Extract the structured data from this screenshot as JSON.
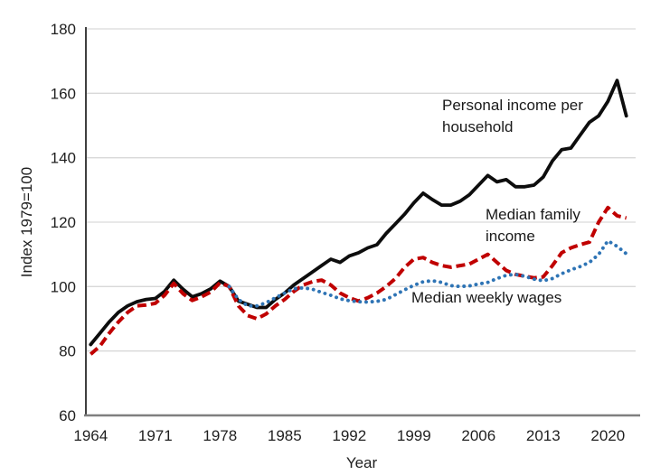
{
  "chart_data": {
    "type": "line",
    "title": "",
    "xlabel": "Year",
    "ylabel": "Index 1979=100",
    "x_ticks": [
      1964,
      1971,
      1978,
      1985,
      1992,
      1999,
      2006,
      2013,
      2020
    ],
    "y_ticks": [
      60,
      80,
      100,
      120,
      140,
      160,
      180
    ],
    "xlim": [
      1964,
      2023
    ],
    "ylim": [
      60,
      180
    ],
    "grid": "horizontal-light",
    "legend_position": "inline-annotations",
    "colors": {
      "personal_income": "#0d0d0d",
      "family_income": "#c00000",
      "weekly_wages": "#2e74b5",
      "gridline": "#d9d9d9",
      "y_axis": "#404040",
      "x_axis": "#7f7f7f",
      "text": "#1f1f1f"
    },
    "series": [
      {
        "name": "personal-income-per-household",
        "label": "Personal income per household",
        "style": "solid",
        "color": "#0d0d0d",
        "start_year": 1979,
        "x_start": 1964,
        "values": [
          82,
          85.5,
          89,
          92,
          94,
          95.3,
          96,
          96.3,
          98.5,
          102,
          99.2,
          96.8,
          97.8,
          99.3,
          101.7,
          100,
          95.5,
          94.5,
          93.5,
          93.5,
          96,
          98,
          100.5,
          102.5,
          104.5,
          106.5,
          108.5,
          107.5,
          109.5,
          110.5,
          112,
          113,
          116.5,
          119.5,
          122.5,
          126,
          129,
          127,
          125.3,
          125.3,
          126.5,
          128.5,
          131.5,
          134.5,
          132.5,
          133.2,
          131,
          131,
          131.5,
          134,
          139,
          142.5,
          143,
          147,
          151,
          153,
          157.5,
          164,
          153
        ]
      },
      {
        "name": "median-family-income",
        "label": "Median family income",
        "style": "dashed",
        "color": "#c00000",
        "start_year": 1979,
        "x_start": 1964,
        "values": [
          79,
          81.5,
          85.5,
          89,
          92,
          94,
          94.3,
          94.8,
          97.3,
          101,
          97.8,
          95.7,
          96.8,
          98.3,
          101.2,
          100,
          94,
          91,
          90,
          91.5,
          94,
          96,
          98.5,
          100.5,
          101.5,
          102,
          100.5,
          98,
          96.5,
          95.5,
          96.5,
          98,
          100,
          102.5,
          106,
          108.5,
          109,
          107.5,
          106.5,
          106,
          106.5,
          107,
          108.5,
          110,
          107.5,
          105,
          103.8,
          103.2,
          102.7,
          103,
          106.5,
          110.5,
          112,
          113,
          113.8,
          120,
          124.5,
          122,
          121.3
        ]
      },
      {
        "name": "median-weekly-wages",
        "label": "Median weekly wages",
        "style": "dotted",
        "color": "#2e74b5",
        "start_year": 1979,
        "x_start": 1979,
        "values": [
          100,
          96,
          94,
          94,
          95,
          96.5,
          98,
          99.3,
          99.6,
          99.2,
          98.2,
          97.3,
          96.2,
          95.6,
          95.3,
          95.2,
          95.4,
          96,
          97.5,
          99,
          100.4,
          101.5,
          101.8,
          101.3,
          100.3,
          100,
          100.2,
          100.8,
          101.3,
          102.5,
          103.5,
          103.8,
          103.2,
          102.3,
          101.8,
          102.5,
          104,
          105.2,
          106.2,
          107.5,
          110,
          114.2,
          112.5,
          110.2
        ]
      }
    ],
    "annotations": [
      {
        "text": "Personal income per household",
        "series": "personal-income-per-household"
      },
      {
        "text": "Median family income",
        "series": "median-family-income"
      },
      {
        "text": "Median weekly wages",
        "series": "median-weekly-wages"
      }
    ]
  }
}
